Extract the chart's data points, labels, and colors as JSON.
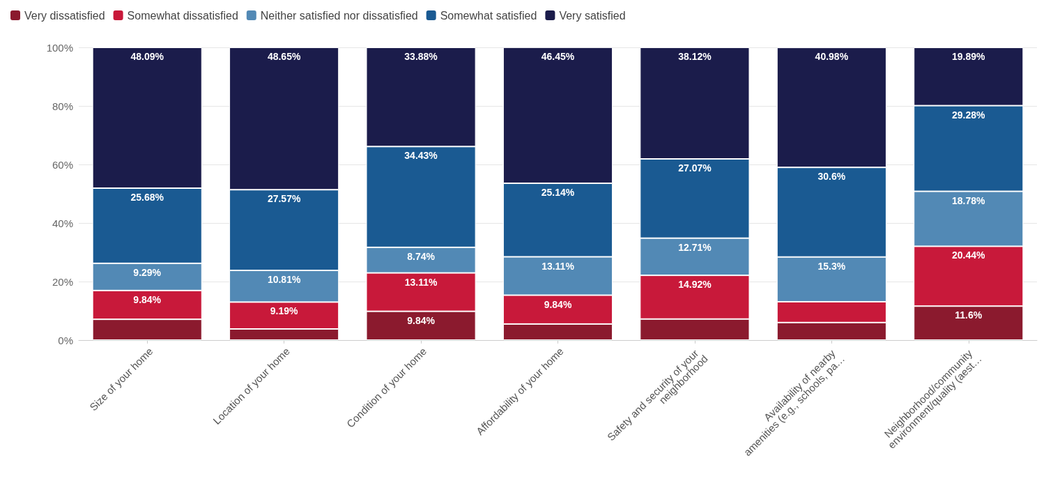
{
  "chart_data": {
    "type": "bar",
    "stacked": true,
    "legend": "top left",
    "grid": "y",
    "categories": [
      "Size of your home",
      "Location of your home",
      "Condition of your home",
      "Affordability of your home",
      "Safety and security of your neighborhood",
      "Availability of nearby amenities (e.g., schools, pa…",
      "Neighborhood/community environment/quality (aest…"
    ],
    "ylim": [
      0,
      100
    ],
    "yticks": [
      {
        "value": 0,
        "label": "0%"
      },
      {
        "value": 20,
        "label": "20%"
      },
      {
        "value": 40,
        "label": "40%"
      },
      {
        "value": 60,
        "label": "60%"
      },
      {
        "value": 80,
        "label": "80%"
      },
      {
        "value": 100,
        "label": "100%"
      }
    ],
    "series": [
      {
        "name": "Very dissatisfied",
        "color": "#8b1a2e",
        "values": [
          7.1,
          3.8,
          9.84,
          5.5,
          7.2,
          6,
          11.6
        ],
        "value_labels": [
          null,
          null,
          "9.84%",
          null,
          null,
          null,
          "11.6%"
        ]
      },
      {
        "name": "Somewhat dissatisfied",
        "color": "#c8193a",
        "values": [
          9.84,
          9.19,
          13.11,
          9.84,
          14.92,
          7.1,
          20.44
        ],
        "value_labels": [
          "9.84%",
          "9.19%",
          "13.11%",
          "9.84%",
          "14.92%",
          null,
          "20.44%"
        ]
      },
      {
        "name": "Neither satisfied nor dissatisfied",
        "color": "#5289b5",
        "values": [
          9.29,
          10.81,
          8.74,
          13.11,
          12.71,
          15.3,
          18.78
        ],
        "value_labels": [
          "9.29%",
          "10.81%",
          "8.74%",
          "13.11%",
          "12.71%",
          "15.3%",
          "18.78%"
        ]
      },
      {
        "name": "Somewhat satisfied",
        "color": "#1a5a92",
        "values": [
          25.68,
          27.57,
          34.43,
          25.14,
          27.07,
          30.6,
          29.28
        ],
        "value_labels": [
          "25.68%",
          "27.57%",
          "34.43%",
          "25.14%",
          "27.07%",
          "30.6%",
          "29.28%"
        ]
      },
      {
        "name": "Very satisfied",
        "color": "#1b1c4b",
        "values": [
          48.09,
          48.65,
          33.88,
          46.45,
          38.12,
          40.98,
          19.89
        ],
        "value_labels": [
          "48.09%",
          "48.65%",
          "33.88%",
          "46.45%",
          "38.12%",
          "40.98%",
          "19.89%"
        ]
      }
    ]
  }
}
